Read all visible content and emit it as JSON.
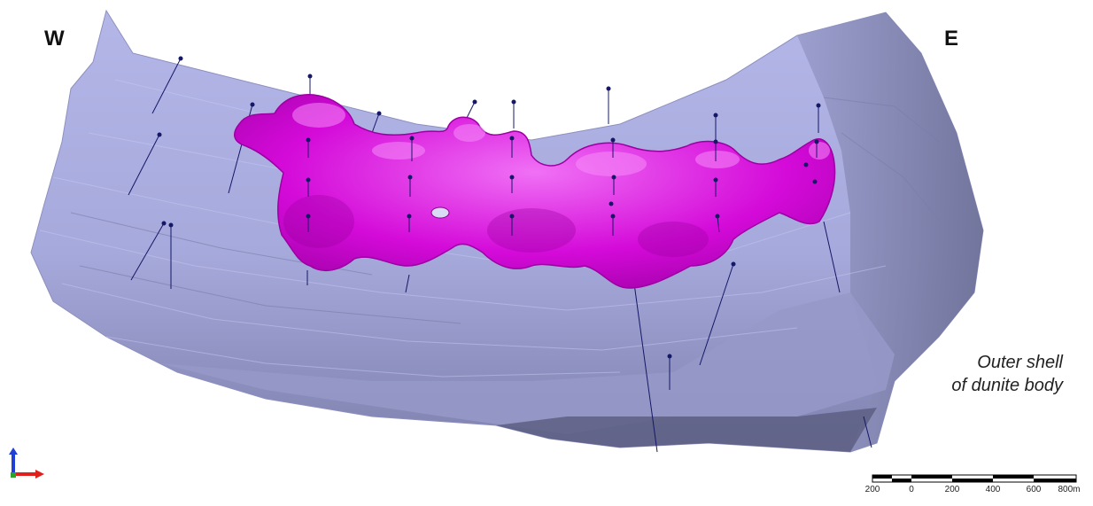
{
  "labels": {
    "west": "W",
    "east": "E",
    "shell_line1": "Outer shell",
    "shell_line2": "of dunite body"
  },
  "scale_bar": {
    "ticks": [
      "200",
      "0",
      "200",
      "400",
      "600",
      "800m"
    ]
  },
  "colors": {
    "shell": "#a9acdc",
    "shell_dark": "#6e7196",
    "ore_body": "#d100d6",
    "ore_highlight": "#f05cf5",
    "drillhole": "#141866",
    "axis_x": "#e0201a",
    "axis_y": "#2ca02c",
    "axis_z": "#1f3fd6"
  },
  "icons": {
    "axis_triad": "xyz-axes-icon"
  }
}
